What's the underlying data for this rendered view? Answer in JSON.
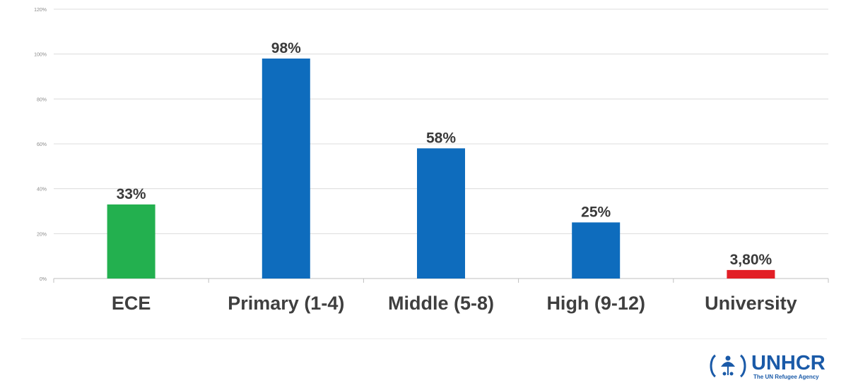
{
  "chart_data": {
    "type": "bar",
    "categories": [
      "ECE",
      "Primary (1-4)",
      "Middle (5-8)",
      "High (9-12)",
      "University"
    ],
    "values": [
      33,
      98,
      58,
      25,
      3.8
    ],
    "data_labels": [
      "33%",
      "98%",
      "58%",
      "25%",
      "3,80%"
    ],
    "bar_colors": [
      "#23b04f",
      "#0e6cbd",
      "#0e6cbd",
      "#0e6cbd",
      "#e21f26"
    ],
    "y_ticks": [
      0,
      20,
      40,
      60,
      80,
      100,
      120
    ],
    "y_tick_labels": [
      "0%",
      "20%",
      "40%",
      "60%",
      "80%",
      "100%",
      "120%"
    ],
    "ylim": [
      0,
      120
    ],
    "grid": true,
    "legend": "none",
    "title": "",
    "xlabel": "",
    "ylabel": ""
  },
  "logo": {
    "name": "UNHCR",
    "tagline": "The UN Refugee Agency",
    "color": "#1a5aa8"
  }
}
